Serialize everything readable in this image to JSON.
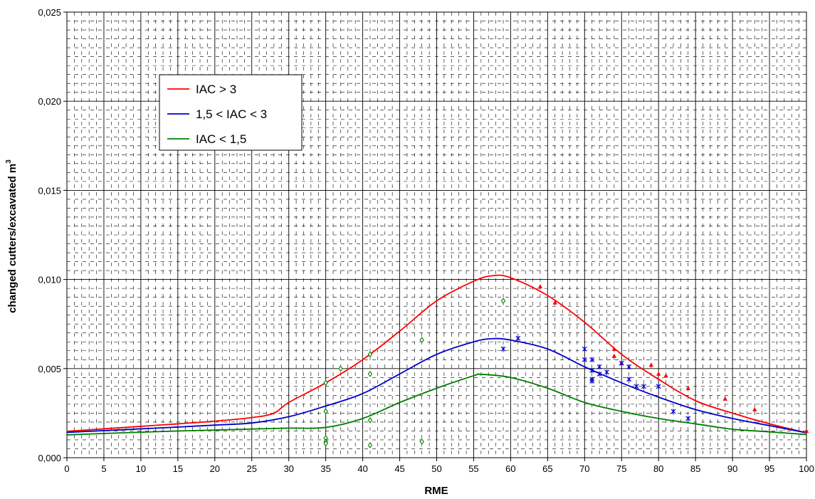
{
  "chart_data": {
    "type": "scatter",
    "title": "",
    "xlabel": "RME",
    "ylabel": "changed cutters/excavated m",
    "ylabel_sup": "3",
    "xlim": [
      0,
      100
    ],
    "ylim": [
      0,
      0.025
    ],
    "x_ticks": [
      0,
      5,
      10,
      15,
      20,
      25,
      30,
      35,
      40,
      45,
      50,
      55,
      60,
      65,
      70,
      75,
      80,
      85,
      90,
      95,
      100
    ],
    "x_tick_labels": [
      "0",
      "5",
      "10",
      "15",
      "20",
      "25",
      "30",
      "35",
      "40",
      "45",
      "50",
      "55",
      "60",
      "65",
      "70",
      "75",
      "80",
      "85",
      "90",
      "95",
      "100"
    ],
    "y_ticks": [
      0,
      0.005,
      0.01,
      0.015,
      0.02,
      0.025
    ],
    "y_tick_labels": [
      "0,000",
      "0,005",
      "0,010",
      "0,015",
      "0,020",
      "0,025"
    ],
    "grid": true,
    "legend_position": "top-left",
    "series": [
      {
        "name": "IAC > 3",
        "color": "#ff0000",
        "marker": "triangle",
        "curve": [
          [
            0,
            0.00148
          ],
          [
            5,
            0.00162
          ],
          [
            10,
            0.00176
          ],
          [
            15,
            0.0019
          ],
          [
            20,
            0.00205
          ],
          [
            25,
            0.00225
          ],
          [
            28,
            0.0025
          ],
          [
            30,
            0.0031
          ],
          [
            35,
            0.0042
          ],
          [
            40,
            0.0055
          ],
          [
            45,
            0.0071
          ],
          [
            50,
            0.0088
          ],
          [
            55,
            0.0099
          ],
          [
            57.5,
            0.01021
          ],
          [
            60,
            0.0101
          ],
          [
            65,
            0.0091
          ],
          [
            70,
            0.0076
          ],
          [
            75,
            0.0058
          ],
          [
            80,
            0.0044
          ],
          [
            85,
            0.0032
          ],
          [
            90,
            0.0025
          ],
          [
            95,
            0.0019
          ],
          [
            100,
            0.0014
          ]
        ],
        "points": [
          [
            64,
            0.0096
          ],
          [
            66,
            0.0087
          ],
          [
            74,
            0.0061
          ],
          [
            74,
            0.0057
          ],
          [
            75,
            0.0053
          ],
          [
            79,
            0.0052
          ],
          [
            80,
            0.0047
          ],
          [
            81,
            0.0046
          ],
          [
            84,
            0.0039
          ],
          [
            89,
            0.0033
          ],
          [
            93,
            0.0027
          ],
          [
            100,
            0.0015
          ]
        ]
      },
      {
        "name": "1,5 < IAC < 3",
        "color": "#0000cc",
        "marker": "star",
        "curve": [
          [
            0,
            0.00142
          ],
          [
            5,
            0.00152
          ],
          [
            10,
            0.00162
          ],
          [
            15,
            0.00172
          ],
          [
            20,
            0.00183
          ],
          [
            25,
            0.00195
          ],
          [
            30,
            0.0023
          ],
          [
            35,
            0.0029
          ],
          [
            40,
            0.0036
          ],
          [
            45,
            0.0047
          ],
          [
            50,
            0.0058
          ],
          [
            55,
            0.0065
          ],
          [
            57.5,
            0.00668
          ],
          [
            60,
            0.0066
          ],
          [
            65,
            0.0061
          ],
          [
            70,
            0.0051
          ],
          [
            75,
            0.0042
          ],
          [
            80,
            0.0034
          ],
          [
            85,
            0.0027
          ],
          [
            90,
            0.0022
          ],
          [
            95,
            0.0018
          ],
          [
            100,
            0.0014
          ]
        ],
        "points": [
          [
            59,
            0.0061
          ],
          [
            61,
            0.0067
          ],
          [
            70,
            0.0061
          ],
          [
            70,
            0.0055
          ],
          [
            71,
            0.0055
          ],
          [
            71,
            0.0049
          ],
          [
            71,
            0.0044
          ],
          [
            71,
            0.0043
          ],
          [
            72,
            0.0051
          ],
          [
            72,
            0.0047
          ],
          [
            73,
            0.0048
          ],
          [
            75,
            0.0053
          ],
          [
            76,
            0.0051
          ],
          [
            76,
            0.0044
          ],
          [
            77,
            0.004
          ],
          [
            78,
            0.004
          ],
          [
            80,
            0.004
          ],
          [
            82,
            0.0026
          ],
          [
            84,
            0.0022
          ]
        ]
      },
      {
        "name": "IAC < 1,5",
        "color": "#008000",
        "marker": "diamond",
        "curve": [
          [
            0,
            0.00128
          ],
          [
            5,
            0.00136
          ],
          [
            10,
            0.00143
          ],
          [
            15,
            0.0015
          ],
          [
            20,
            0.00155
          ],
          [
            25,
            0.00161
          ],
          [
            30,
            0.00166
          ],
          [
            35,
            0.0017
          ],
          [
            40,
            0.0022
          ],
          [
            45,
            0.0031
          ],
          [
            50,
            0.0039
          ],
          [
            55,
            0.0046
          ],
          [
            56,
            0.00468
          ],
          [
            60,
            0.0045
          ],
          [
            65,
            0.0039
          ],
          [
            70,
            0.0031
          ],
          [
            75,
            0.0026
          ],
          [
            80,
            0.0022
          ],
          [
            85,
            0.0019
          ],
          [
            90,
            0.0016
          ],
          [
            95,
            0.00145
          ],
          [
            100,
            0.0013
          ]
        ],
        "points": [
          [
            35,
            0.0042
          ],
          [
            35,
            0.0026
          ],
          [
            35,
            0.0011
          ],
          [
            35,
            0.0009
          ],
          [
            35,
            0.0008
          ],
          [
            37,
            0.005
          ],
          [
            41,
            0.0058
          ],
          [
            41,
            0.0047
          ],
          [
            41,
            0.0021
          ],
          [
            41,
            0.0007
          ],
          [
            48,
            0.0066
          ],
          [
            48,
            0.0009
          ],
          [
            59,
            0.0088
          ]
        ]
      }
    ]
  }
}
